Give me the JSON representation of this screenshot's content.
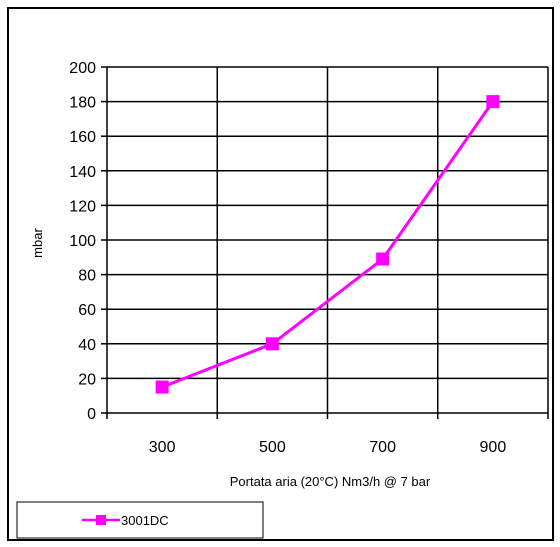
{
  "chart_data": {
    "type": "line",
    "title": "",
    "xlabel": "Portata aria (20°C) Nm3/h @ 7 bar",
    "ylabel": "mbar",
    "categories": [
      "300",
      "500",
      "700",
      "900"
    ],
    "ylim": [
      0,
      200
    ],
    "yticks": [
      0,
      20,
      40,
      60,
      80,
      100,
      120,
      140,
      160,
      180,
      200
    ],
    "grid": true,
    "legend_position": "bottom-left",
    "series": [
      {
        "name": "3001DC",
        "values": [
          15,
          40,
          89,
          180
        ],
        "color": "#ff00ff",
        "marker": "square"
      }
    ]
  }
}
